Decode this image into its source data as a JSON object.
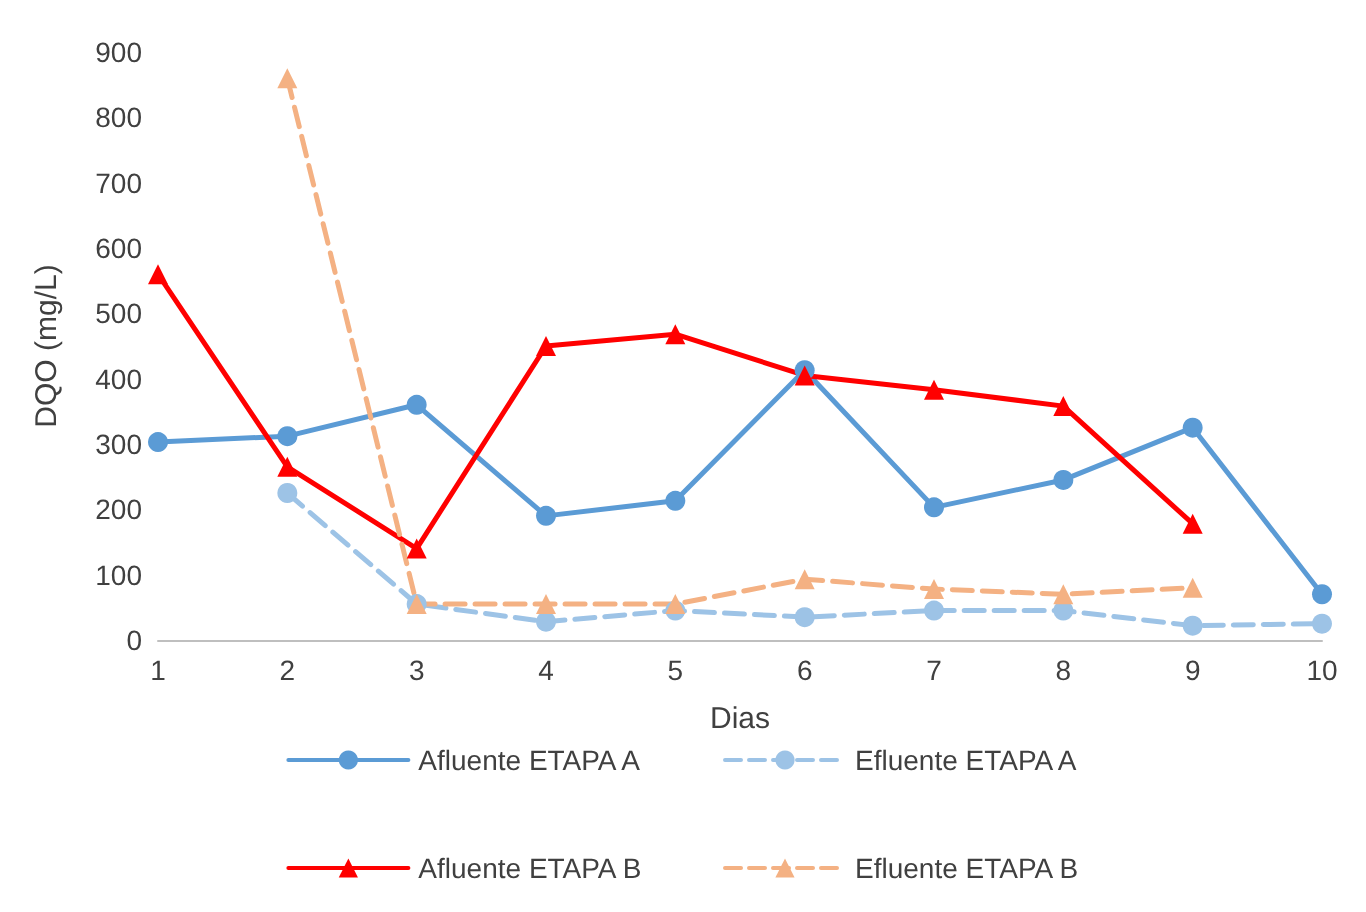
{
  "chart_data": {
    "type": "line",
    "xlabel": "Dias",
    "ylabel": "DQO (mg/L)",
    "categories": [
      "1",
      "2",
      "3",
      "4",
      "5",
      "6",
      "7",
      "8",
      "9",
      "10"
    ],
    "ylim": [
      0,
      900
    ],
    "yticks": [
      0,
      100,
      200,
      300,
      400,
      500,
      600,
      700,
      800,
      900
    ],
    "grid": false,
    "legend": "bottom",
    "series": [
      {
        "name": "Afluente ETAPA A",
        "color": "#5b9bd5",
        "marker": "circle",
        "line_style": "solid",
        "values": [
          303,
          312,
          360,
          190,
          213,
          413,
          203,
          245,
          325,
          70
        ]
      },
      {
        "name": "Efluente ETAPA A",
        "color": "#9dc3e6",
        "marker": "circle",
        "line_style": "dashed",
        "values": [
          null,
          225,
          55,
          28,
          45,
          35,
          45,
          45,
          22,
          25
        ]
      },
      {
        "name": "Afluente ETAPA B",
        "color": "#ff0000",
        "marker": "triangle",
        "line_style": "solid",
        "values": [
          560,
          265,
          140,
          450,
          468,
          405,
          383,
          358,
          178,
          null
        ]
      },
      {
        "name": "Efluente ETAPA B",
        "color": "#f4b183",
        "marker": "triangle",
        "line_style": "dashed",
        "values": [
          null,
          860,
          55,
          55,
          55,
          93,
          78,
          70,
          80,
          null
        ]
      }
    ]
  }
}
